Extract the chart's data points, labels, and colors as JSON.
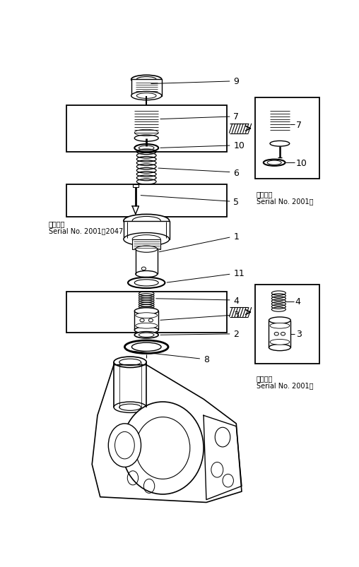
{
  "bg_color": "#ffffff",
  "line_color": "#000000",
  "fig_width": 5.08,
  "fig_height": 8.04,
  "dpi": 100,
  "serial_left_line1": "適用号機",
  "serial_left_line2": "Serial No. 2001～2047",
  "serial_right1_line1": "適用号機",
  "serial_right1_line2": "Serial No. 2001～",
  "serial_right2_line1": "適用号機",
  "serial_right2_line2": "Serial No. 2001～"
}
